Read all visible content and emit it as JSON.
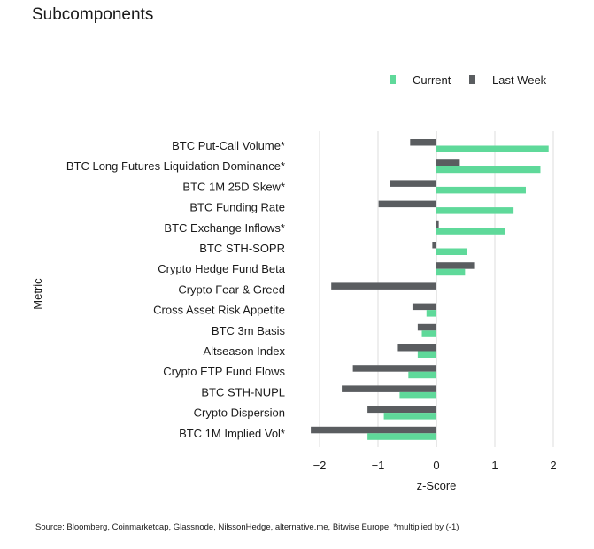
{
  "title": "Subcomponents",
  "source": "Source: Bloomberg, Coinmarketcap, Glassnode, NilssonHedge, alternative.me, Bitwise Europe, *multiplied by (-1)",
  "chart_data": {
    "type": "bar",
    "orientation": "horizontal",
    "xlabel": "z-Score",
    "ylabel": "Metric",
    "xlim": [
      -2.1,
      2.1
    ],
    "xticks": [
      -2,
      -1,
      0,
      1,
      2
    ],
    "grid": "vertical",
    "legend_position": "top-right",
    "categories": [
      "BTC Put-Call Volume*",
      "BTC Long Futures Liquidation Dominance*",
      "BTC 1M 25D Skew*",
      "BTC Funding Rate",
      "BTC Exchange Inflows*",
      "BTC STH-SOPR",
      "Crypto Hedge Fund Beta",
      "Crypto Fear & Greed",
      "Cross Asset Risk Appetite",
      "BTC 3m Basis",
      "Altseason Index",
      "Crypto ETP Fund Flows",
      "BTC STH-NUPL",
      "Crypto Dispersion",
      "BTC 1M Implied Vol*"
    ],
    "series": [
      {
        "name": "Current",
        "color": "#5fd99a",
        "values": [
          1.92,
          1.78,
          1.53,
          1.32,
          1.17,
          0.53,
          0.49,
          0.0,
          -0.17,
          -0.25,
          -0.32,
          -0.48,
          -0.63,
          -0.9,
          -1.18
        ]
      },
      {
        "name": "Last Week",
        "color": "#5a5d60",
        "values": [
          -0.45,
          0.4,
          -0.8,
          -0.99,
          0.04,
          -0.07,
          0.66,
          -1.8,
          -0.41,
          -0.32,
          -0.66,
          -1.43,
          -1.62,
          -1.18,
          -2.15
        ]
      }
    ]
  }
}
